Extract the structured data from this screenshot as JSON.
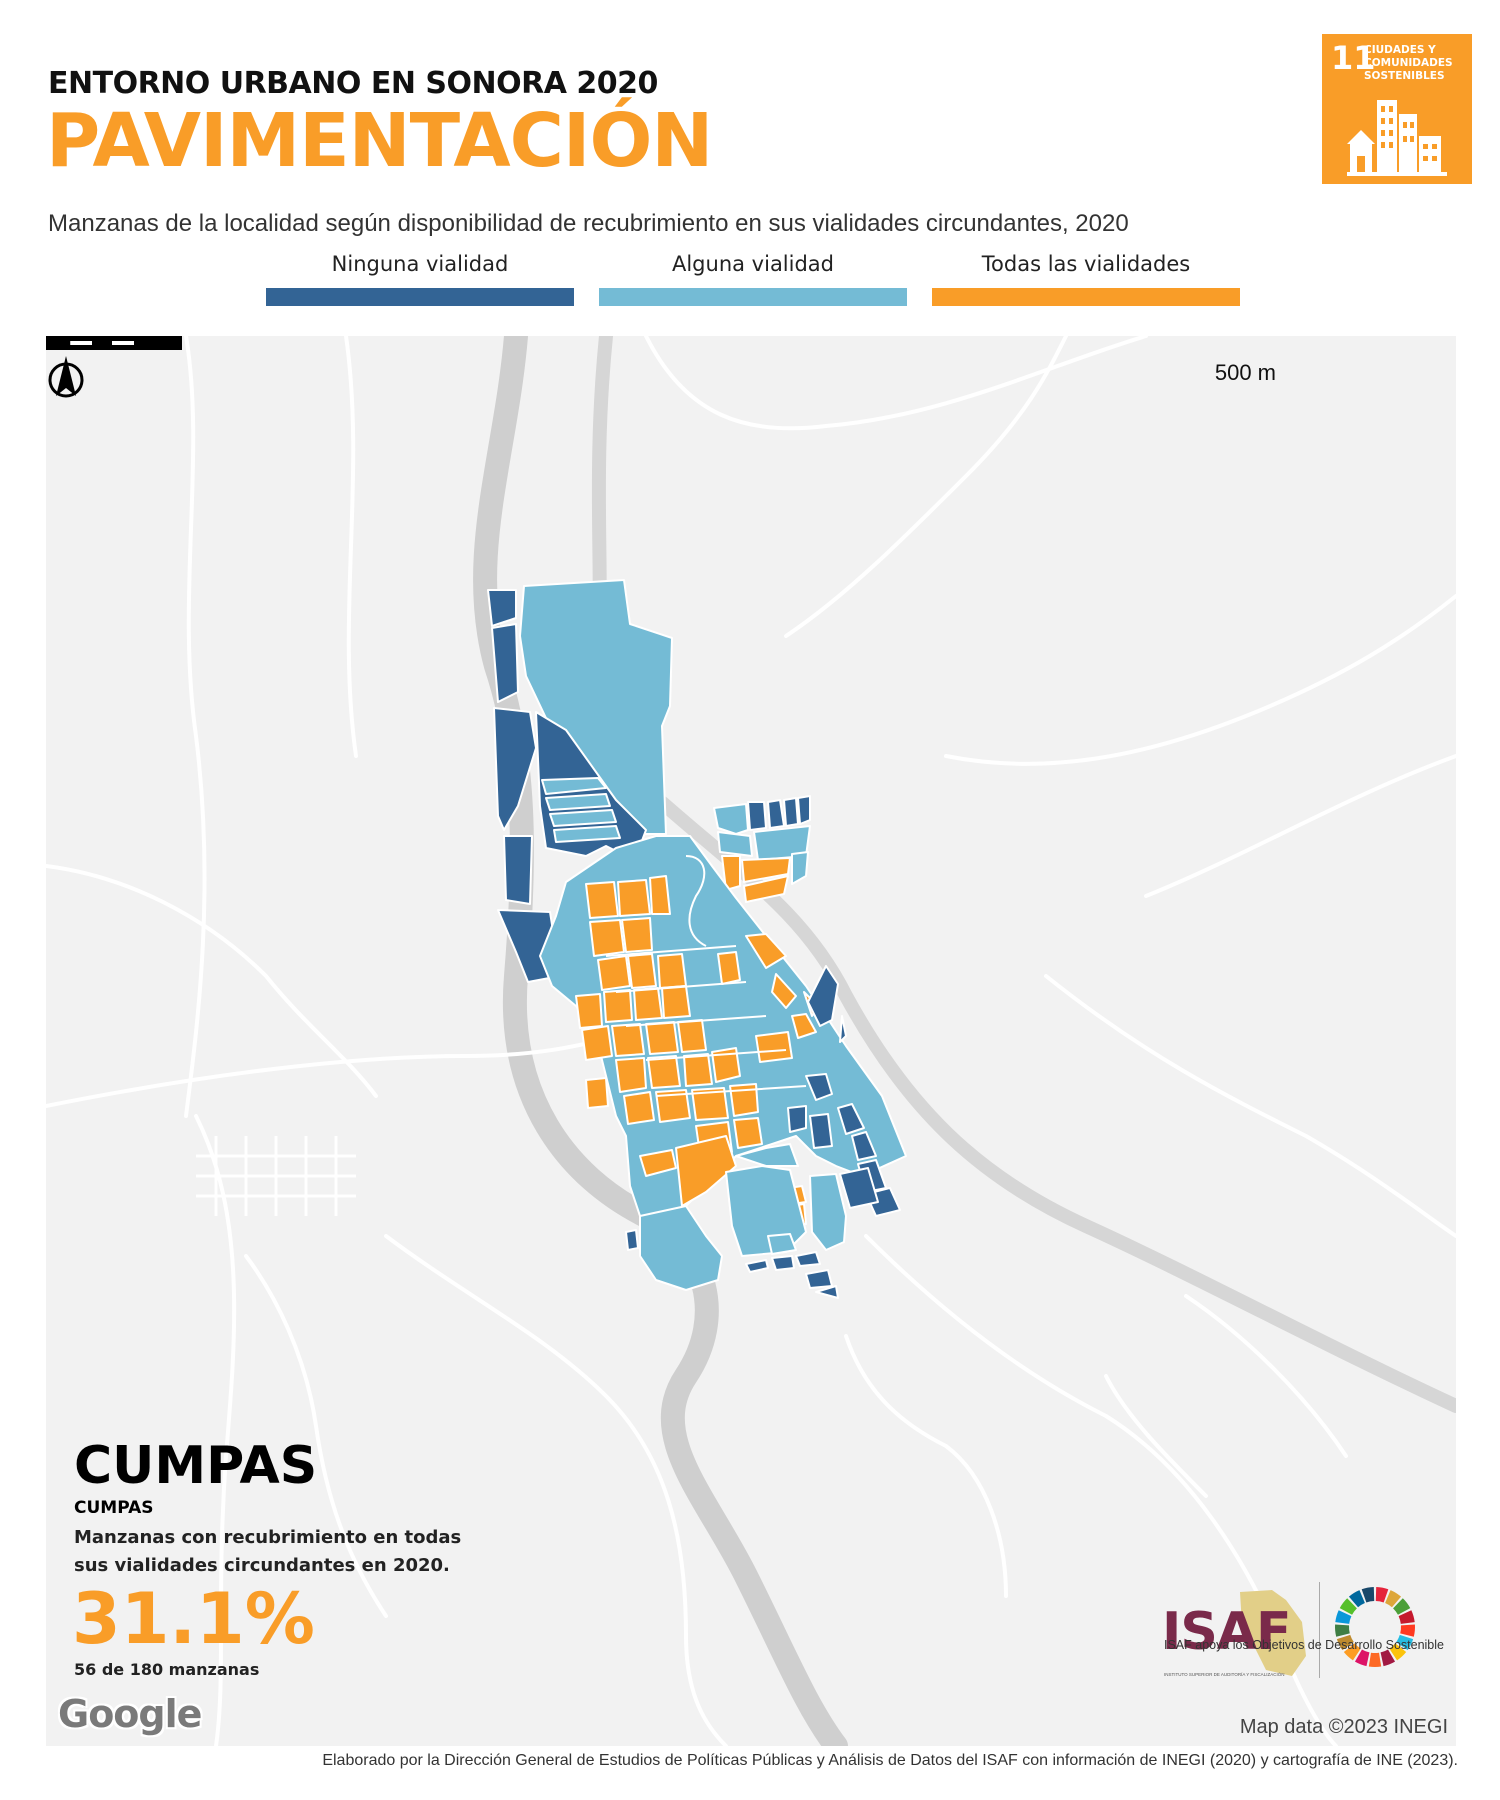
{
  "header": {
    "kicker": "ENTORNO URBANO EN SONORA 2020",
    "title": "PAVIMENTACIÓN",
    "subtitle": "Manzanas de la localidad según disponibilidad de recubrimiento en sus vialidades circundantes, 2020"
  },
  "sdg_badge": {
    "number": "11",
    "text": "CIUDADES Y\nCOMUNIDADES\nSOSTENIBLES",
    "color": "#f99d28"
  },
  "legend": [
    {
      "label": "Ninguna vialidad",
      "color": "#336495"
    },
    {
      "label": "Alguna vialidad",
      "color": "#74bbd5"
    },
    {
      "label": "Todas las vialidades",
      "color": "#f99d28"
    }
  ],
  "map": {
    "scale_label": "500 m",
    "north_label": "N",
    "background_color": "#f2f2f2",
    "attribution": "Map data ©2023 INEGI",
    "google_label": "Google"
  },
  "locality": {
    "name": "CUMPAS",
    "subname": "CUMPAS",
    "description": "Manzanas con recubrimiento en todas sus vialidades circundantes en 2020.",
    "percent": "31.1%",
    "count_text": "56 de 180 manzanas"
  },
  "logos": {
    "isaf": "ISAF",
    "isaf_sub": "INSTITUTO SUPERIOR DE AUDITORÍA Y FISCALIZACIÓN",
    "caption": "ISAF apoya los Objetivos de Desarrollo Sostenible",
    "isaf_color": "#7a2a4a"
  },
  "footer": "Elaborado por la Dirección General de Estudios de Políticas Públicas y Análisis de Datos del ISAF con información de INEGI (2020) y cartografía de INE (2023)."
}
